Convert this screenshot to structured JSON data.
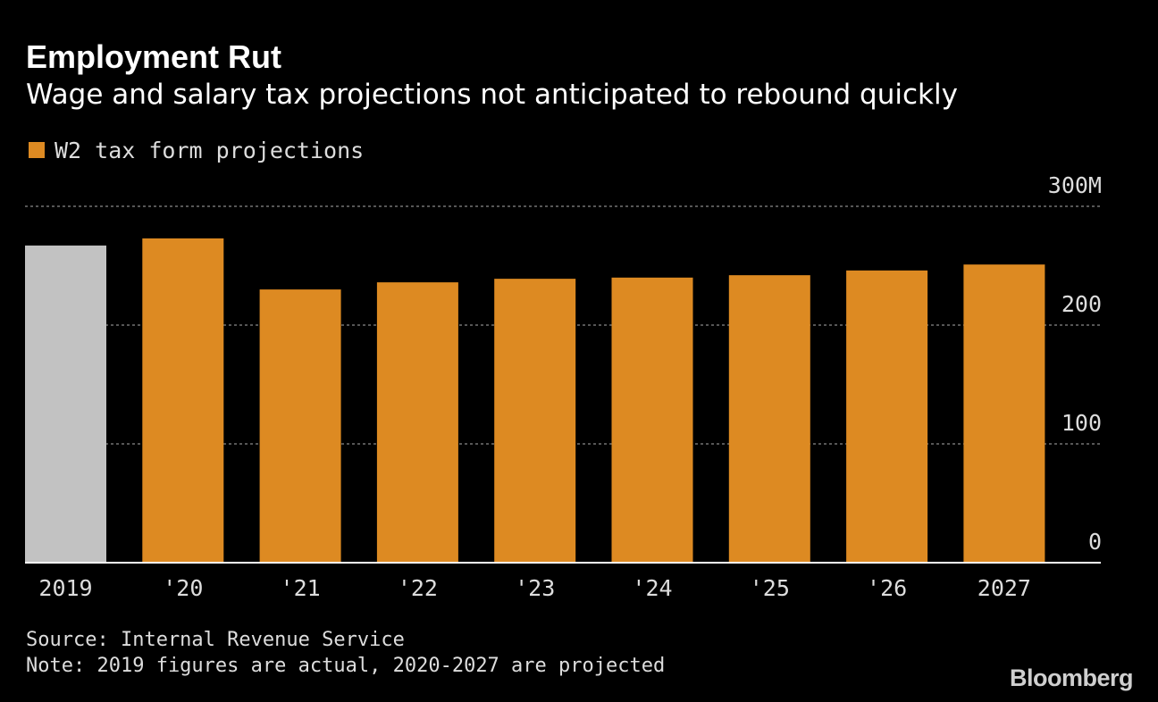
{
  "title": "Employment Rut",
  "subtitle": "Wage and salary tax projections not anticipated to rebound quickly",
  "legend": {
    "label": "W2 tax form projections",
    "color": "#dd8a22"
  },
  "source": "Source: Internal Revenue Service",
  "note": "Note: 2019 figures are actual, 2020-2027 are projected",
  "logo": "Bloomberg",
  "colors": {
    "background": "#000000",
    "projected": "#dd8a22",
    "actual": "#c2c2c2",
    "grid": "#8a8a8a",
    "text": "#dddddd"
  },
  "chart_data": {
    "type": "bar",
    "categories": [
      "2019",
      "'20",
      "'21",
      "'22",
      "'23",
      "'24",
      "'25",
      "'26",
      "'27"
    ],
    "tick_labels": [
      "2019",
      "'20",
      "'21",
      "'22",
      "'23",
      "'24",
      "'25",
      "'26",
      "2027"
    ],
    "series": [
      {
        "name": "W2 tax form projections",
        "values": [
          267,
          273,
          230,
          236,
          239,
          240,
          242,
          246,
          251
        ]
      }
    ],
    "actual_categories": [
      "2019"
    ],
    "y_ticks": [
      {
        "value": 0,
        "label": "0"
      },
      {
        "value": 100,
        "label": "100"
      },
      {
        "value": 200,
        "label": "200"
      },
      {
        "value": 300,
        "label": "300M"
      }
    ],
    "ylim": [
      0,
      300
    ],
    "grid": true,
    "y_axis_side": "right",
    "legend_position": "top-left"
  }
}
